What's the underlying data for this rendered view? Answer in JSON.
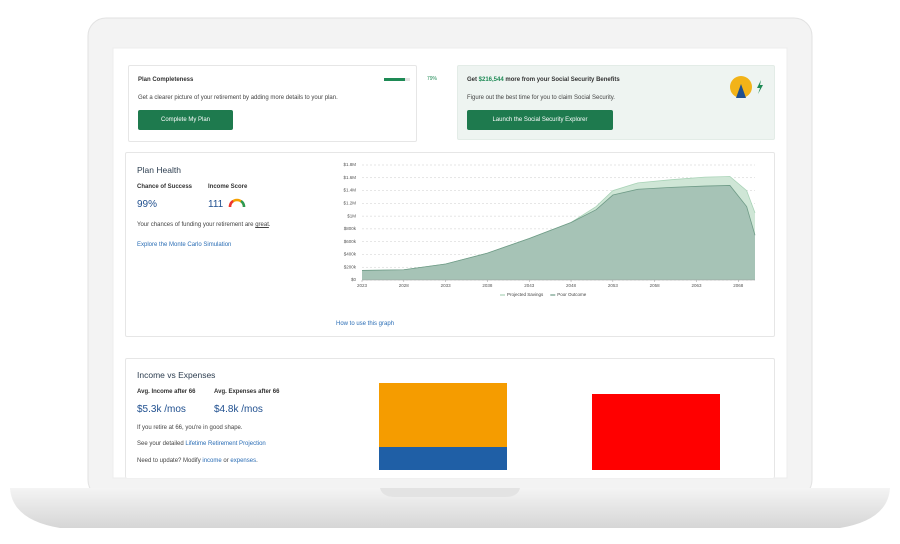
{
  "completeness": {
    "title": "Plan Completeness",
    "progress": {
      "value": 79,
      "label": "79%"
    },
    "text": "Get a clearer picture of your retirement by adding more details to your plan.",
    "button": "Complete My Plan"
  },
  "social_security": {
    "title_parts": [
      "Get ",
      "$216,544",
      " more from your Social Security Benefits"
    ],
    "text": "Figure out the best time for you to claim Social Security.",
    "button": "Launch the Social Security Explorer"
  },
  "plan_health": {
    "title": "Plan Health",
    "success_label": "Chance of Success",
    "success_value": "99%",
    "score_label": "Income Score",
    "score_value": "111",
    "text_parts": [
      "Your chances of funding your retirement are ",
      "great",
      "."
    ],
    "link": "Explore the Monte Carlo Simulation",
    "graph_link": "How to use this graph"
  },
  "chart_data": {
    "type": "area",
    "x": [
      2023,
      2028,
      2033,
      2038,
      2043,
      2048,
      2051,
      2053,
      2056,
      2060,
      2064,
      2067,
      2069,
      2070
    ],
    "series": [
      {
        "name": "Projected Savings",
        "color": "#cfe6d6",
        "values": [
          150000,
          160000,
          250000,
          420000,
          650000,
          900000,
          1150000,
          1400000,
          1520000,
          1570000,
          1610000,
          1620000,
          1400000,
          1050000
        ]
      },
      {
        "name": "Poor Outcome",
        "color": "#a6c3b6",
        "values": [
          150000,
          160000,
          250000,
          420000,
          650000,
          900000,
          1100000,
          1330000,
          1420000,
          1450000,
          1470000,
          1480000,
          1150000,
          700000
        ]
      }
    ],
    "xlim": [
      2023,
      2070
    ],
    "xticks": [
      2023,
      2028,
      2033,
      2038,
      2043,
      2048,
      2053,
      2058,
      2063,
      2068
    ],
    "ylim": [
      0,
      1800000
    ],
    "yticks": [
      {
        "value": 0,
        "label": "$0"
      },
      {
        "value": 200000,
        "label": "$200k"
      },
      {
        "value": 400000,
        "label": "$400k"
      },
      {
        "value": 600000,
        "label": "$600k"
      },
      {
        "value": 800000,
        "label": "$800k"
      },
      {
        "value": 1000000,
        "label": "$1M"
      },
      {
        "value": 1200000,
        "label": "$1.2M"
      },
      {
        "value": 1400000,
        "label": "$1.4M"
      },
      {
        "value": 1600000,
        "label": "$1.6M"
      },
      {
        "value": 1800000,
        "label": "$1.8M"
      }
    ],
    "grid": true,
    "legend": "bottom"
  },
  "income_expenses": {
    "title": "Income vs Expenses",
    "income_label": "Avg. Income after 66",
    "expense_label": "Avg. Expenses after 66",
    "income_value": "$5.3k /mos",
    "expense_value": "$4.8k /mos",
    "text1": "If you retire at 66, you're in good shape.",
    "text2_parts": [
      "See your detailed ",
      "Lifetime Retirement Projection"
    ],
    "text3_parts": [
      "Need to update? Modify ",
      "income",
      " or ",
      "expenses",
      "."
    ],
    "chart": {
      "type": "bar",
      "ylim": [
        0,
        100
      ],
      "series": [
        {
          "color": "#1f5fa6",
          "values": [
            23,
            0
          ]
        },
        {
          "color": "#f59c00",
          "values": [
            64,
            0
          ]
        },
        {
          "color": "#ff0000",
          "values": [
            0,
            76
          ]
        }
      ]
    }
  }
}
